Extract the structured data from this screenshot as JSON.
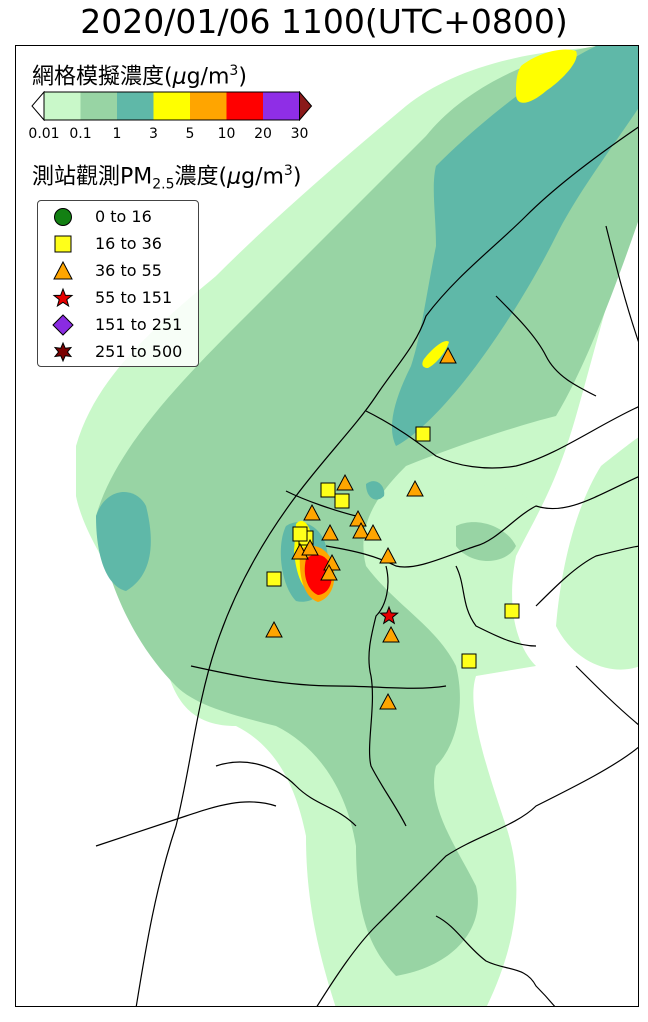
{
  "title": "2020/01/06 1100(UTC+0800)",
  "colorbar": {
    "label_prefix": "網格模擬濃度(",
    "label_mu": "μ",
    "label_unit": "g/m",
    "label_sup": "3",
    "label_suffix": ")",
    "ticks": [
      "0.01",
      "0.1",
      "1",
      "3",
      "5",
      "10",
      "20",
      "30"
    ],
    "colors": [
      "#c9f8c9",
      "#98d4a4",
      "#5fb8a8",
      "#ffff00",
      "#ffa500",
      "#ff0000",
      "#8f2ee6"
    ],
    "under_color": "#ffffff",
    "over_color": "#8b1a1a"
  },
  "station_header": {
    "prefix": "測站觀測PM",
    "sub": "2.5",
    "mid": "濃度(",
    "mu": "μ",
    "unit": "g/m",
    "sup": "3",
    "suffix": ")"
  },
  "legend": {
    "items": [
      {
        "label": "0 to 16",
        "marker": "circle",
        "color": "#138013"
      },
      {
        "label": "16 to 36",
        "marker": "square",
        "color": "#ffff1a"
      },
      {
        "label": "36 to 55",
        "marker": "triangle",
        "color": "#ffa500"
      },
      {
        "label": "55 to 151",
        "marker": "star",
        "color": "#e60000"
      },
      {
        "label": "151 to 251",
        "marker": "diamond",
        "color": "#8a2be2"
      },
      {
        "label": "251 to 500",
        "marker": "hexstar",
        "color": "#7a0000"
      }
    ]
  },
  "stations": [
    {
      "category": "16 to 36",
      "marker": "square"
    },
    {
      "category": "16 to 36",
      "marker": "square"
    },
    {
      "category": "16 to 36",
      "marker": "square"
    },
    {
      "category": "16 to 36",
      "marker": "square"
    },
    {
      "category": "16 to 36",
      "marker": "square"
    },
    {
      "category": "16 to 36",
      "marker": "square"
    },
    {
      "category": "16 to 36",
      "marker": "square"
    },
    {
      "category": "16 to 36",
      "marker": "square"
    },
    {
      "category": "36 to 55",
      "marker": "triangle"
    },
    {
      "category": "36 to 55",
      "marker": "triangle"
    },
    {
      "category": "36 to 55",
      "marker": "triangle"
    },
    {
      "category": "36 to 55",
      "marker": "triangle"
    },
    {
      "category": "36 to 55",
      "marker": "triangle"
    },
    {
      "category": "36 to 55",
      "marker": "triangle"
    },
    {
      "category": "36 to 55",
      "marker": "triangle"
    },
    {
      "category": "36 to 55",
      "marker": "triangle"
    },
    {
      "category": "36 to 55",
      "marker": "triangle"
    },
    {
      "category": "36 to 55",
      "marker": "triangle"
    },
    {
      "category": "36 to 55",
      "marker": "triangle"
    },
    {
      "category": "36 to 55",
      "marker": "triangle"
    },
    {
      "category": "36 to 55",
      "marker": "triangle"
    },
    {
      "category": "36 to 55",
      "marker": "triangle"
    },
    {
      "category": "36 to 55",
      "marker": "triangle"
    },
    {
      "category": "36 to 55",
      "marker": "triangle"
    },
    {
      "category": "55 to 151",
      "marker": "star"
    }
  ]
}
